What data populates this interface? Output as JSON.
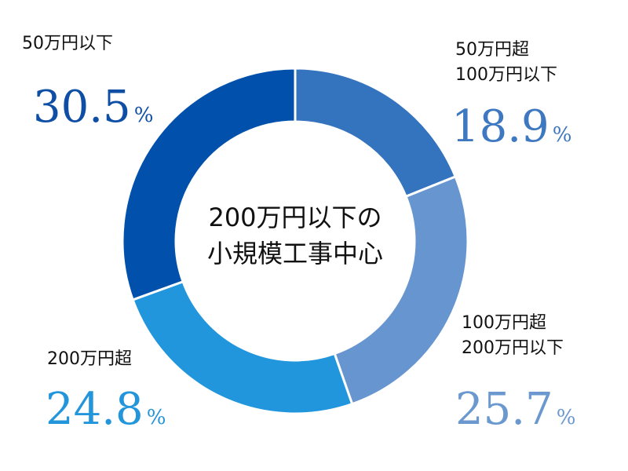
{
  "chart_data": {
    "type": "pie",
    "variant": "donut",
    "start": "top, clockwise",
    "center_text": [
      "200万円以下の",
      "小規模工事中心"
    ],
    "slices": [
      {
        "label_lines": [
          "50万円超",
          "100万円以下"
        ],
        "value": 18.9,
        "value_text": "18.9",
        "unit": "%",
        "color": "#3473BE",
        "label_color": "#3D78C0"
      },
      {
        "label_lines": [
          "100万円超",
          "200万円以下"
        ],
        "value": 25.7,
        "value_text": "25.7",
        "unit": "%",
        "color": "#6795CF",
        "label_color": "#6A98CF"
      },
      {
        "label_lines": [
          "200万円超"
        ],
        "value": 24.8,
        "value_text": "24.8",
        "unit": "%",
        "color": "#2196DD",
        "label_color": "#2395DB"
      },
      {
        "label_lines": [
          "50万円以下"
        ],
        "value": 30.5,
        "value_text": "30.5",
        "unit": "%",
        "color": "#0151AC",
        "label_color": "#0E4EA4"
      }
    ]
  }
}
